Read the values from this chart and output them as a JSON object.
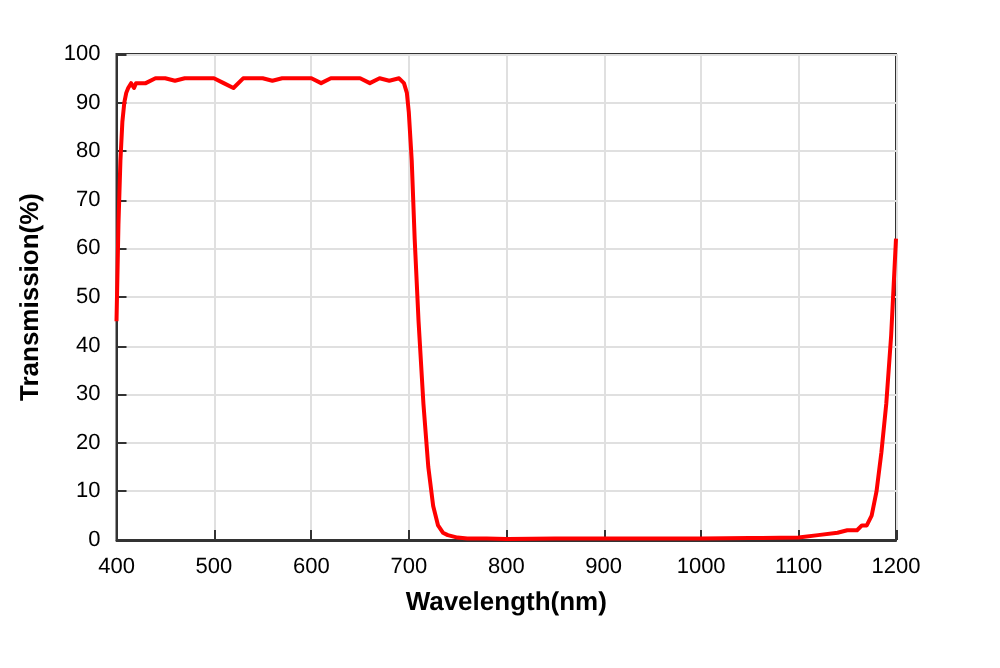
{
  "chart_data": {
    "type": "line",
    "xlabel": "Wavelength(nm)",
    "ylabel": "Transmission(%)",
    "series": [
      {
        "color": "#ff0000",
        "x": [
          400,
          402,
          404,
          406,
          408,
          410,
          412,
          415,
          418,
          420,
          425,
          430,
          440,
          450,
          460,
          470,
          480,
          490,
          500,
          510,
          520,
          530,
          540,
          550,
          560,
          570,
          580,
          590,
          600,
          610,
          620,
          630,
          640,
          650,
          660,
          670,
          680,
          690,
          695,
          698,
          700,
          703,
          706,
          710,
          715,
          720,
          725,
          730,
          735,
          740,
          750,
          760,
          780,
          800,
          850,
          900,
          950,
          1000,
          1050,
          1100,
          1120,
          1140,
          1150,
          1160,
          1165,
          1170,
          1175,
          1180,
          1185,
          1190,
          1195,
          1200
        ],
        "values": [
          45,
          65,
          78,
          86,
          90,
          92,
          93,
          94,
          93,
          94,
          94,
          94,
          95,
          95,
          94.5,
          95,
          95,
          95,
          95,
          94,
          93,
          95,
          95,
          95,
          94.5,
          95,
          95,
          95,
          95,
          94,
          95,
          95,
          95,
          95,
          94,
          95,
          94.5,
          95,
          94,
          92,
          88,
          78,
          62,
          45,
          28,
          15,
          7,
          3,
          1.5,
          1,
          0.5,
          0.3,
          0.3,
          0.2,
          0.3,
          0.3,
          0.3,
          0.3,
          0.4,
          0.5,
          1,
          1.5,
          2,
          2,
          3,
          3,
          5,
          10,
          18,
          28,
          42,
          62
        ]
      }
    ],
    "xlim": [
      400,
      1200
    ],
    "xticks": [
      400,
      500,
      600,
      700,
      800,
      900,
      1000,
      1100,
      1200
    ],
    "ylim": [
      0,
      100
    ],
    "yticks": [
      0,
      10,
      20,
      30,
      40,
      50,
      60,
      70,
      80,
      90,
      100
    ],
    "grid": true,
    "marker": "none",
    "line_style": "solid"
  }
}
